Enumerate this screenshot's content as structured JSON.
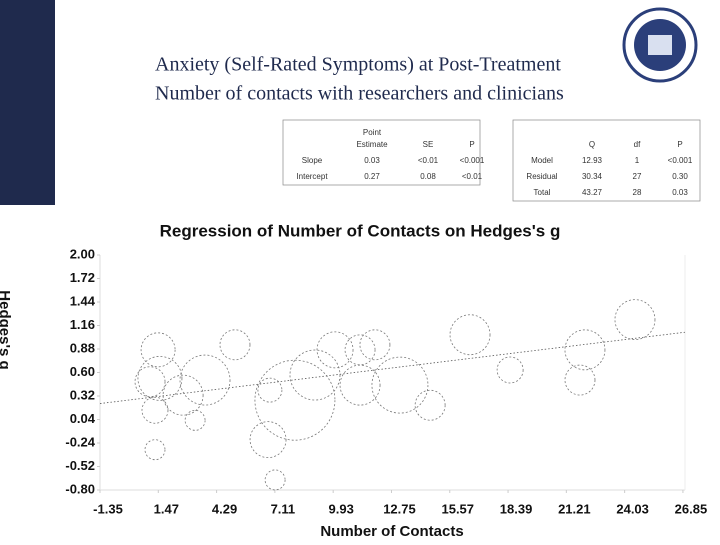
{
  "header": {
    "title_lines": [
      "Anxiety (Self-Rated Symptoms) at Post-Treatment",
      "Number of contacts with researchers and clinicians"
    ]
  },
  "table1": {
    "columns": [
      "Point Estimate",
      "SE",
      "P"
    ],
    "rows": [
      {
        "label": "Slope",
        "cells": [
          "0.03",
          "<0.01",
          "<0.001"
        ]
      },
      {
        "label": "Intercept",
        "cells": [
          "0.27",
          "0.08",
          "<0.01"
        ]
      }
    ]
  },
  "table2": {
    "columns": [
      "Q",
      "df",
      "P"
    ],
    "rows": [
      {
        "label": "Model",
        "cells": [
          "12.93",
          "1",
          "<0.001"
        ]
      },
      {
        "label": "Residual",
        "cells": [
          "30.34",
          "27",
          "0.30"
        ]
      },
      {
        "label": "Total",
        "cells": [
          "43.27",
          "28",
          "0.03"
        ]
      }
    ]
  },
  "chart_data": {
    "type": "bubble",
    "title": "Regression of Number of Contacts on Hedges's g",
    "x_label": "Number of Contacts",
    "y_label": "Hedges's g",
    "xlim": [
      -1.35,
      26.95
    ],
    "ylim": [
      -0.8,
      2.0
    ],
    "xticks": [
      {
        "value": -1.35,
        "label": "-1.35"
      },
      {
        "value": 1.47,
        "label": "1.47"
      },
      {
        "value": 4.29,
        "label": "4.29"
      },
      {
        "value": 7.11,
        "label": "7.11"
      },
      {
        "value": 9.93,
        "label": "9.93"
      },
      {
        "value": 12.75,
        "label": "12.75"
      },
      {
        "value": 15.57,
        "label": "15.57"
      },
      {
        "value": 18.39,
        "label": "18.39"
      },
      {
        "value": 21.21,
        "label": "21.21"
      },
      {
        "value": 24.03,
        "label": "24.03"
      },
      {
        "value": 26.85,
        "label": "26.85"
      }
    ],
    "yticks": [
      {
        "value": 2.0,
        "label": "2.00"
      },
      {
        "value": 1.72,
        "label": "1.72"
      },
      {
        "value": 1.44,
        "label": "1.44"
      },
      {
        "value": 1.16,
        "label": "1.16"
      },
      {
        "value": 0.88,
        "label": "0.88"
      },
      {
        "value": 0.6,
        "label": "0.60"
      },
      {
        "value": 0.32,
        "label": "0.32"
      },
      {
        "value": 0.04,
        "label": "0.04"
      },
      {
        "value": -0.24,
        "label": "-0.24"
      },
      {
        "value": -0.52,
        "label": "-0.52"
      },
      {
        "value": -0.8,
        "label": "-0.80"
      }
    ],
    "color": "#777777",
    "x": [
      1.46,
      1.55,
      1.07,
      1.31,
      1.31,
      2.67,
      3.73,
      5.18,
      6.87,
      7.12,
      6.78,
      8.08,
      9.05,
      10.02,
      11.23,
      11.95,
      11.23,
      13.16,
      16.55,
      18.49,
      22.11,
      21.87,
      24.53,
      14.62,
      3.25
    ],
    "values": [
      0.87,
      0.53,
      0.49,
      0.15,
      -0.32,
      0.33,
      0.51,
      0.93,
      0.39,
      -0.68,
      -0.2,
      0.27,
      0.57,
      0.87,
      0.87,
      0.93,
      0.45,
      0.45,
      1.05,
      0.63,
      0.87,
      0.51,
      1.23,
      0.21,
      0.03
    ],
    "sizes": [
      17,
      22,
      15,
      13,
      10,
      20,
      25,
      15,
      12,
      10,
      18,
      40,
      25,
      18,
      15,
      15,
      20,
      28,
      20,
      13,
      20,
      15,
      20,
      15,
      10
    ],
    "regression": {
      "x": [
        -1.35,
        26.95
      ],
      "y": [
        0.23,
        1.08
      ]
    }
  }
}
